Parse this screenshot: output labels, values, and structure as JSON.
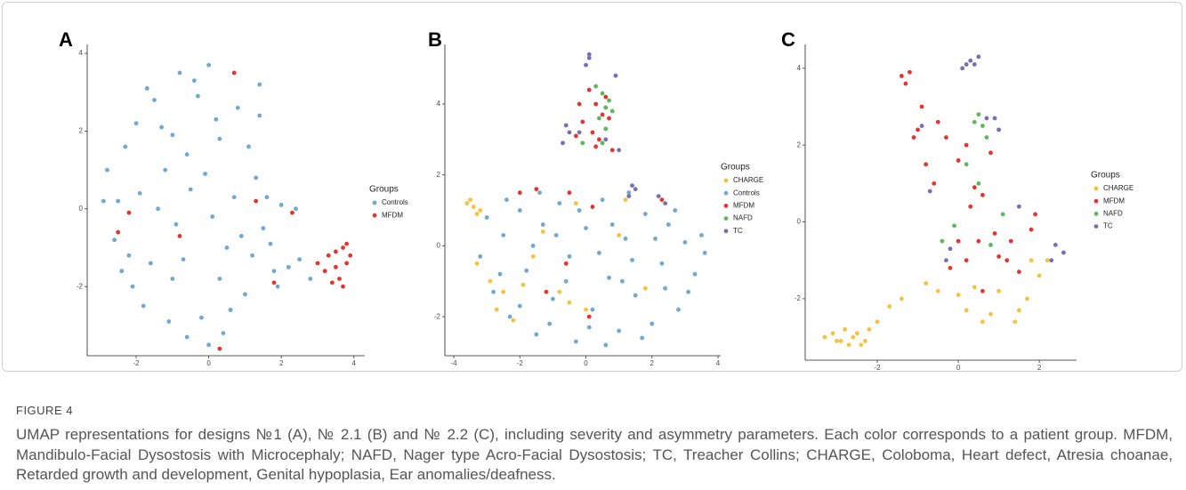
{
  "chart_data": [
    {
      "type": "scatter",
      "panel": "A",
      "legend_title": "Groups",
      "xlim": [
        -3.35,
        4.3
      ],
      "ylim": [
        -3.78,
        4.23
      ],
      "xticks": [
        -2,
        0,
        2,
        4
      ],
      "yticks": [
        -2,
        0,
        2,
        4
      ],
      "series": [
        {
          "name": "Controls",
          "color": "#6fa8d0",
          "x": [
            -2.8,
            -2.5,
            -2.2,
            -2.0,
            -1.8,
            -1.5,
            -1.2,
            -1.0,
            -0.8,
            -0.5,
            -0.2,
            0.0,
            0.3,
            0.5,
            0.8,
            1.0,
            1.3,
            1.5,
            1.8,
            2.0,
            -2.6,
            -2.3,
            -1.9,
            -1.6,
            -1.3,
            -0.9,
            -0.6,
            -0.3,
            0.1,
            0.4,
            0.7,
            1.1,
            1.4,
            1.7,
            -2.1,
            -1.7,
            -1.1,
            -0.7,
            -0.1,
            0.6,
            1.2,
            2.2,
            2.5,
            2.8,
            -0.4,
            0.2,
            0.9,
            -1.4,
            1.6,
            -2.9,
            -0.6,
            0.3,
            1.9,
            -1.0,
            0.0,
            1.4,
            -2.4,
            2.4
          ],
          "values": [
            1.0,
            0.2,
            -1.2,
            2.2,
            -2.5,
            2.8,
            1.0,
            -1.8,
            3.5,
            0.5,
            -2.8,
            3.7,
            1.8,
            -1.0,
            2.6,
            -2.2,
            0.8,
            -0.5,
            -1.6,
            0.1,
            -0.8,
            1.6,
            0.4,
            -1.4,
            2.1,
            -0.4,
            1.4,
            2.9,
            -0.2,
            -3.2,
            0.3,
            1.6,
            2.4,
            -0.9,
            -2.0,
            3.1,
            -2.9,
            -1.3,
            0.9,
            -2.6,
            -1.2,
            -1.5,
            -1.3,
            -1.8,
            3.3,
            2.3,
            -0.7,
            0.0,
            0.3,
            0.2,
            -3.3,
            -1.8,
            -2.0,
            1.9,
            -3.5,
            3.2,
            -1.6,
            0.0
          ]
        },
        {
          "name": "MFDM",
          "color": "#e3342f",
          "x": [
            3.3,
            3.5,
            3.7,
            3.6,
            3.8,
            3.2,
            3.4,
            3.9,
            3.0,
            3.7,
            3.5,
            3.8,
            0.7,
            1.3,
            2.3,
            -2.5,
            -2.2,
            -0.8,
            1.8,
            0.3
          ],
          "values": [
            -1.2,
            -1.5,
            -1.0,
            -1.8,
            -1.4,
            -1.6,
            -1.9,
            -1.2,
            -1.4,
            -2.0,
            -1.1,
            -0.9,
            3.5,
            0.2,
            -0.1,
            -0.6,
            -0.1,
            -0.7,
            -1.9,
            -3.6
          ]
        }
      ]
    },
    {
      "type": "scatter",
      "panel": "B",
      "legend_title": "Groups",
      "xlim": [
        -4.27,
        4.08
      ],
      "ylim": [
        -3.1,
        5.68
      ],
      "xticks": [
        -4,
        -2,
        0,
        2,
        4
      ],
      "yticks": [
        -2,
        0,
        2,
        4
      ],
      "series": [
        {
          "name": "CHARGE",
          "color": "#f6c141",
          "x": [
            -3.6,
            -3.4,
            -3.3,
            -3.5,
            -3.2,
            -3.3,
            -2.9,
            -2.5,
            -2.2,
            -1.9,
            -0.8,
            -0.5,
            0.0,
            -1.3,
            -0.3,
            1.2,
            1.8,
            -2.7,
            1.0,
            -1.6
          ],
          "values": [
            1.2,
            1.1,
            0.9,
            1.3,
            1.0,
            -0.5,
            -1.0,
            -1.3,
            -2.1,
            -1.1,
            -1.3,
            -1.6,
            -1.8,
            0.4,
            1.2,
            1.3,
            -1.2,
            -1.8,
            0.3,
            -0.3
          ]
        },
        {
          "name": "Controls",
          "color": "#6fa8d0",
          "x": [
            -3.2,
            -3.0,
            -2.8,
            -2.5,
            -2.3,
            -2.0,
            -1.8,
            -1.5,
            -1.3,
            -1.0,
            -0.8,
            -0.5,
            -0.3,
            0.0,
            0.2,
            0.5,
            0.7,
            1.0,
            1.2,
            1.5,
            1.8,
            2.0,
            2.3,
            2.5,
            2.8,
            3.0,
            3.3,
            3.5,
            3.6,
            -2.6,
            -1.6,
            -0.6,
            0.4,
            1.4,
            2.4,
            -2.0,
            -1.1,
            0.1,
            1.1,
            2.1,
            -0.2,
            0.8,
            1.7,
            -1.4,
            3.1,
            0.6,
            -0.9,
            2.7,
            1.3,
            -2.4
          ],
          "values": [
            -0.3,
            0.8,
            -1.3,
            0.3,
            -2.0,
            1.0,
            -0.7,
            -2.5,
            0.6,
            -1.5,
            1.2,
            -0.3,
            -2.7,
            0.5,
            -1.8,
            1.3,
            -0.9,
            -2.4,
            0.2,
            -1.4,
            0.9,
            -2.2,
            -0.5,
            0.6,
            -1.8,
            0.1,
            -0.8,
            0.3,
            -0.2,
            -0.8,
            0.0,
            -1.0,
            -0.2,
            -0.4,
            -1.2,
            -1.7,
            -2.2,
            -2.3,
            -1.0,
            0.2,
            1.0,
            0.6,
            -2.6,
            1.5,
            -1.3,
            -2.8,
            0.3,
            1.0,
            1.5,
            1.3
          ]
        },
        {
          "name": "MFDM",
          "color": "#e3342f",
          "x": [
            0.1,
            0.3,
            0.5,
            -0.1,
            0.2,
            0.6,
            0.4,
            -0.3,
            0.8,
            0.7,
            0.3,
            -0.2,
            -2.0,
            -1.5,
            -0.5,
            0.2,
            -0.6,
            -1.2,
            0.1,
            2.3
          ],
          "values": [
            4.4,
            4.0,
            3.7,
            3.5,
            3.2,
            4.2,
            3.0,
            3.1,
            2.7,
            3.6,
            2.8,
            4.0,
            1.5,
            1.6,
            1.5,
            1.1,
            -0.5,
            -1.3,
            -2.0,
            1.3
          ]
        },
        {
          "name": "NAFD",
          "color": "#5db85c",
          "x": [
            0.5,
            0.6,
            0.7,
            0.4,
            0.6,
            0.8,
            -0.1,
            0.5,
            0.3
          ],
          "values": [
            4.3,
            3.9,
            4.1,
            3.6,
            3.3,
            3.8,
            2.9,
            2.9,
            4.5
          ]
        },
        {
          "name": "TC",
          "color": "#7a6db5",
          "x": [
            0.1,
            0.0,
            0.1,
            0.9,
            -0.5,
            -0.7,
            -0.2,
            0.6,
            1.4,
            1.5,
            1.3,
            2.2,
            2.4,
            1.0,
            -0.6
          ],
          "values": [
            5.3,
            5.1,
            5.4,
            4.8,
            3.2,
            2.9,
            3.2,
            3.0,
            1.7,
            1.6,
            1.4,
            1.4,
            1.2,
            2.7,
            3.4
          ]
        }
      ]
    },
    {
      "type": "scatter",
      "panel": "C",
      "legend_title": "Groups",
      "xlim": [
        -3.78,
        2.92
      ],
      "ylim": [
        -3.6,
        4.62
      ],
      "xticks": [
        -2,
        0,
        2
      ],
      "yticks": [
        -2,
        0,
        2,
        4
      ],
      "series": [
        {
          "name": "CHARGE",
          "color": "#f6c141",
          "x": [
            -3.3,
            -3.1,
            -2.9,
            -2.8,
            -2.7,
            -2.6,
            -2.5,
            -2.4,
            -3.0,
            -2.2,
            -2.0,
            -1.7,
            -1.4,
            -0.8,
            -0.5,
            0.0,
            0.4,
            0.8,
            1.0,
            1.4,
            1.5,
            1.7,
            0.6,
            1.8,
            2.0,
            2.2,
            -2.3,
            0.2
          ],
          "values": [
            -3.0,
            -2.9,
            -3.1,
            -2.8,
            -3.2,
            -3.0,
            -2.9,
            -3.2,
            -3.1,
            -2.8,
            -2.6,
            -2.2,
            -2.0,
            -1.6,
            -1.8,
            -1.9,
            -1.7,
            -2.4,
            -1.8,
            -2.6,
            -2.3,
            -2.0,
            -2.6,
            -1.0,
            -1.4,
            -1.0,
            -3.1,
            -2.3
          ]
        },
        {
          "name": "MFDM",
          "color": "#e3342f",
          "x": [
            -1.4,
            -1.3,
            -1.2,
            -1.0,
            -0.8,
            -0.6,
            -0.3,
            0.0,
            0.2,
            0.4,
            0.6,
            0.8,
            -0.9,
            -0.5,
            0.3,
            0.5,
            0.9,
            1.2,
            1.5,
            1.8,
            1.9,
            0.2,
            0.0,
            -0.2,
            1.0,
            0.6,
            1.3,
            -1.1
          ],
          "values": [
            3.8,
            3.6,
            3.9,
            2.4,
            1.5,
            1.0,
            2.2,
            1.6,
            2.0,
            0.9,
            0.7,
            1.8,
            3.0,
            2.6,
            0.4,
            -0.5,
            -0.3,
            -1.0,
            -1.3,
            -0.2,
            0.2,
            -1.0,
            -0.5,
            -1.2,
            -0.9,
            -1.8,
            -0.5,
            2.2
          ]
        },
        {
          "name": "NAFD",
          "color": "#5db85c",
          "x": [
            0.5,
            0.6,
            0.4,
            0.7,
            0.2,
            0.5,
            -0.4,
            -0.1,
            0.8,
            1.1
          ],
          "values": [
            2.8,
            2.5,
            2.6,
            2.2,
            1.5,
            1.0,
            -0.5,
            -0.1,
            -0.6,
            0.2
          ]
        },
        {
          "name": "TC",
          "color": "#7a6db5",
          "x": [
            0.2,
            0.3,
            0.4,
            0.1,
            0.5,
            0.7,
            0.9,
            1.0,
            -0.7,
            -0.9,
            2.4,
            2.6,
            2.3,
            1.5,
            -0.2,
            -0.3
          ],
          "values": [
            4.1,
            4.2,
            4.1,
            4.0,
            4.3,
            2.7,
            2.7,
            2.4,
            0.8,
            2.5,
            -0.6,
            -0.8,
            -1.0,
            0.4,
            -0.7,
            -1.0
          ]
        }
      ]
    }
  ],
  "caption": {
    "label": "FIGURE 4",
    "text": "UMAP representations for designs №1 (A), № 2.1 (B) and № 2.2 (C), including severity and asymmetry parameters. Each color corresponds to a patient group. MFDM, Mandibulo-Facial Dysostosis with Microcephaly; NAFD, Nager type Acro-Facial Dysostosis; TC, Treacher Collins; CHARGE, Coloboma, Heart defect, Atresia choanae, Retarded growth and development, Genital hypoplasia, Ear anomalies/deafness."
  }
}
